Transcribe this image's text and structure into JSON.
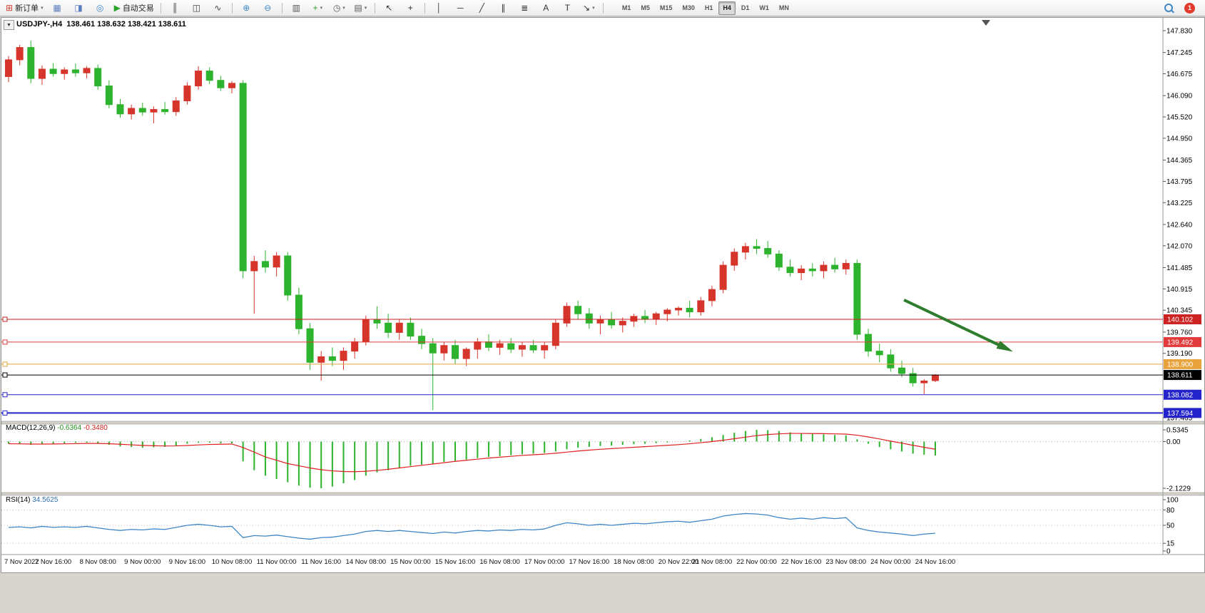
{
  "toolbar": {
    "items": [
      {
        "name": "new-order-button",
        "glyph": "⊞",
        "glyph_color": "#cf3b2f",
        "label": "新订单",
        "dropdown": true
      },
      {
        "name": "charts-tile-button",
        "glyph": "▦",
        "glyph_color": "#5a7fc0"
      },
      {
        "name": "profile-button",
        "glyph": "◨",
        "glyph_color": "#5a7fc0"
      },
      {
        "name": "data-window-button",
        "glyph": "◎",
        "glyph_color": "#3f87c4"
      },
      {
        "name": "auto-trading-button",
        "glyph": "▶",
        "glyph_color": "#2da52d",
        "label": "自动交易"
      },
      {
        "sep": true
      },
      {
        "name": "bar-chart-type-button",
        "glyph": "║",
        "glyph_color": "#444444"
      },
      {
        "name": "candlestick-chart-type-button",
        "glyph": "◫",
        "glyph_color": "#444444"
      },
      {
        "name": "line-chart-type-button",
        "glyph": "∿",
        "glyph_color": "#444444"
      },
      {
        "sep": true
      },
      {
        "name": "zoom-in-button",
        "glyph": "⊕",
        "glyph_color": "#3f87c4"
      },
      {
        "name": "zoom-out-button",
        "glyph": "⊖",
        "glyph_color": "#3f87c4"
      },
      {
        "sep": true
      },
      {
        "name": "tile-windows-button",
        "glyph": "▥",
        "glyph_color": "#555555"
      },
      {
        "name": "indicators-button",
        "glyph": "+",
        "glyph_color": "#2da52d",
        "dropdown": true
      },
      {
        "name": "periods-button",
        "glyph": "◷",
        "glyph_color": "#555555",
        "dropdown": true
      },
      {
        "name": "templates-button",
        "glyph": "▤",
        "glyph_color": "#555555",
        "dropdown": true
      },
      {
        "sep": true
      },
      {
        "name": "cursor-button",
        "glyph": "↖",
        "glyph_color": "#333333"
      },
      {
        "name": "crosshair-button",
        "glyph": "+",
        "glyph_color": "#333333"
      },
      {
        "sep": true
      },
      {
        "name": "vertical-line-button",
        "glyph": "│",
        "glyph_color": "#333333"
      },
      {
        "name": "horizontal-line-button",
        "glyph": "─",
        "glyph_color": "#333333"
      },
      {
        "name": "trendline-button",
        "glyph": "╱",
        "glyph_color": "#333333"
      },
      {
        "name": "channel-button",
        "glyph": "∥",
        "glyph_color": "#333333"
      },
      {
        "name": "fibonacci-button",
        "glyph": "≣",
        "glyph_color": "#333333"
      },
      {
        "name": "text-button",
        "glyph": "A",
        "glyph_color": "#333333"
      },
      {
        "name": "label-button",
        "glyph": "T",
        "glyph_color": "#333333"
      },
      {
        "name": "arrows-button",
        "glyph": "↘",
        "glyph_color": "#333333",
        "dropdown": true
      },
      {
        "sep": true
      }
    ],
    "timeframes": [
      "M1",
      "M5",
      "M15",
      "M30",
      "H1",
      "H4",
      "D1",
      "W1",
      "MN"
    ],
    "active_timeframe": "H4",
    "notification_count": "1"
  },
  "chart": {
    "quote_line": "USDJPY-,H4  138.461 138.632 138.421 138.611",
    "dropdown_glyph": "▼"
  },
  "indicators": {
    "macd": {
      "name": "MACD(12,26,9)",
      "value_main": "-0.6364",
      "value_signal": "-0.3480"
    },
    "rsi": {
      "name": "RSI(14)",
      "value": "34.5625"
    }
  },
  "colors": {
    "up_candle": "#d6352b",
    "down_candle": "#2db32d",
    "macd_histogram": "#2db32d",
    "macd_signal": "#e02020",
    "rsi_line": "#3e86c6",
    "resistance_red": "#cc2222",
    "pivot_orange": "#e8a33d",
    "support_blue": "#2424cc",
    "arrow_green": "#2e7d2e"
  },
  "chart_data": [
    {
      "type": "candlestick",
      "title": "USDJPY-,H4",
      "symbol": "USDJPY-",
      "timeframe": "H4",
      "up_color": "#d6352b",
      "down_color": "#2db32d",
      "ylim": [
        137.44,
        148.17
      ],
      "price_axis_labels": [
        147.83,
        147.245,
        146.675,
        146.09,
        145.52,
        144.95,
        144.365,
        143.795,
        143.225,
        142.64,
        142.07,
        141.485,
        140.915,
        140.345,
        139.76,
        139.19,
        137.465
      ],
      "x_labels": [
        [
          0,
          "7 Nov 2022"
        ],
        [
          4,
          "7 Nov 16:00"
        ],
        [
          8,
          "8 Nov 08:00"
        ],
        [
          12,
          "9 Nov 00:00"
        ],
        [
          16,
          "9 Nov 16:00"
        ],
        [
          20,
          "10 Nov 08:00"
        ],
        [
          24,
          "11 Nov 00:00"
        ],
        [
          28,
          "11 Nov 16:00"
        ],
        [
          32,
          "14 Nov 08:00"
        ],
        [
          36,
          "15 Nov 00:00"
        ],
        [
          40,
          "15 Nov 16:00"
        ],
        [
          44,
          "16 Nov 08:00"
        ],
        [
          48,
          "17 Nov 00:00"
        ],
        [
          52,
          "17 Nov 16:00"
        ],
        [
          56,
          "18 Nov 08:00"
        ],
        [
          60,
          "20 Nov 22:00"
        ],
        [
          63,
          "21 Nov 08:00"
        ],
        [
          67,
          "22 Nov 00:00"
        ],
        [
          71,
          "22 Nov 16:00"
        ],
        [
          75,
          "23 Nov 08:00"
        ],
        [
          79,
          "24 Nov 00:00"
        ],
        [
          83,
          "24 Nov 16:00"
        ]
      ],
      "ohlc": [
        [
          146.6,
          147.15,
          146.45,
          147.05
        ],
        [
          147.05,
          147.45,
          146.9,
          147.38
        ],
        [
          147.38,
          147.56,
          146.42,
          146.55
        ],
        [
          146.55,
          146.9,
          146.38,
          146.8
        ],
        [
          146.8,
          146.96,
          146.6,
          146.68
        ],
        [
          146.68,
          146.85,
          146.52,
          146.78
        ],
        [
          146.78,
          146.95,
          146.6,
          146.7
        ],
        [
          146.7,
          146.88,
          146.55,
          146.82
        ],
        [
          146.82,
          146.92,
          146.25,
          146.35
        ],
        [
          146.35,
          146.5,
          145.75,
          145.85
        ],
        [
          145.85,
          146.0,
          145.5,
          145.6
        ],
        [
          145.6,
          145.85,
          145.45,
          145.75
        ],
        [
          145.75,
          145.9,
          145.55,
          145.65
        ],
        [
          145.65,
          145.8,
          145.35,
          145.72
        ],
        [
          145.72,
          145.92,
          145.58,
          145.66
        ],
        [
          145.66,
          146.05,
          145.55,
          145.95
        ],
        [
          145.95,
          146.45,
          145.85,
          146.35
        ],
        [
          146.35,
          146.88,
          146.25,
          146.75
        ],
        [
          146.75,
          146.85,
          146.4,
          146.5
        ],
        [
          146.5,
          146.62,
          146.22,
          146.3
        ],
        [
          146.3,
          146.48,
          146.15,
          146.42
        ],
        [
          146.42,
          146.5,
          141.2,
          141.4
        ],
        [
          141.4,
          141.8,
          140.25,
          141.65
        ],
        [
          141.65,
          141.95,
          141.35,
          141.5
        ],
        [
          141.5,
          141.9,
          141.25,
          141.8
        ],
        [
          141.8,
          141.9,
          140.6,
          140.75
        ],
        [
          140.75,
          140.95,
          139.7,
          139.85
        ],
        [
          139.85,
          140.0,
          138.75,
          138.95
        ],
        [
          138.95,
          139.25,
          138.46,
          139.1
        ],
        [
          139.1,
          139.35,
          138.85,
          139.0
        ],
        [
          139.0,
          139.35,
          138.75,
          139.25
        ],
        [
          139.25,
          139.6,
          139.05,
          139.5
        ],
        [
          139.5,
          140.2,
          139.4,
          140.1
        ],
        [
          140.1,
          140.45,
          139.85,
          140.0
        ],
        [
          140.0,
          140.25,
          139.6,
          139.75
        ],
        [
          139.75,
          140.1,
          139.55,
          140.0
        ],
        [
          140.0,
          140.15,
          139.55,
          139.65
        ],
        [
          139.65,
          139.85,
          139.3,
          139.45
        ],
        [
          139.45,
          139.6,
          137.67,
          139.2
        ],
        [
          139.2,
          139.5,
          139.0,
          139.4
        ],
        [
          139.4,
          139.55,
          138.9,
          139.05
        ],
        [
          139.05,
          139.35,
          138.85,
          139.3
        ],
        [
          139.3,
          139.6,
          139.05,
          139.5
        ],
        [
          139.5,
          139.7,
          139.25,
          139.35
        ],
        [
          139.35,
          139.55,
          139.15,
          139.45
        ],
        [
          139.45,
          139.6,
          139.2,
          139.3
        ],
        [
          139.3,
          139.5,
          139.1,
          139.4
        ],
        [
          139.4,
          139.55,
          139.2,
          139.28
        ],
        [
          139.28,
          139.5,
          139.05,
          139.4
        ],
        [
          139.4,
          140.1,
          139.3,
          140.0
        ],
        [
          140.0,
          140.55,
          139.9,
          140.45
        ],
        [
          140.45,
          140.6,
          140.1,
          140.25
        ],
        [
          140.25,
          140.4,
          139.85,
          140.0
        ],
        [
          140.0,
          140.2,
          139.7,
          140.1
        ],
        [
          140.1,
          140.3,
          139.85,
          139.95
        ],
        [
          139.95,
          140.15,
          139.75,
          140.05
        ],
        [
          140.05,
          140.25,
          139.9,
          140.18
        ],
        [
          140.18,
          140.35,
          140.0,
          140.1
        ],
        [
          140.1,
          140.3,
          139.95,
          140.25
        ],
        [
          140.25,
          140.4,
          140.05,
          140.35
        ],
        [
          140.35,
          140.45,
          140.2,
          140.4
        ],
        [
          140.4,
          140.6,
          140.15,
          140.3
        ],
        [
          140.3,
          140.7,
          140.2,
          140.6
        ],
        [
          140.6,
          141.0,
          140.45,
          140.9
        ],
        [
          140.9,
          141.65,
          140.8,
          141.55
        ],
        [
          141.55,
          142.0,
          141.4,
          141.9
        ],
        [
          141.9,
          142.15,
          141.7,
          142.05
        ],
        [
          142.05,
          142.25,
          141.85,
          142.0
        ],
        [
          142.0,
          142.2,
          141.75,
          141.85
        ],
        [
          141.85,
          141.95,
          141.4,
          141.5
        ],
        [
          141.5,
          141.7,
          141.25,
          141.35
        ],
        [
          141.35,
          141.55,
          141.15,
          141.45
        ],
        [
          141.45,
          141.6,
          141.25,
          141.4
        ],
        [
          141.4,
          141.65,
          141.2,
          141.55
        ],
        [
          141.55,
          141.75,
          141.35,
          141.45
        ],
        [
          141.45,
          141.7,
          141.3,
          141.6
        ],
        [
          141.6,
          141.7,
          139.55,
          139.7
        ],
        [
          139.7,
          139.85,
          139.1,
          139.25
        ],
        [
          139.25,
          139.45,
          138.95,
          139.15
        ],
        [
          139.15,
          139.3,
          138.7,
          138.8
        ],
        [
          138.8,
          139.0,
          138.55,
          138.65
        ],
        [
          138.65,
          138.8,
          138.3,
          138.4
        ],
        [
          138.4,
          138.5,
          138.1,
          138.45
        ],
        [
          138.461,
          138.632,
          138.421,
          138.611
        ]
      ],
      "hlines": [
        {
          "name": "resistance-1",
          "price": 140.102,
          "label": "140.102",
          "color": "#cc2222",
          "width": 1
        },
        {
          "name": "resistance-2",
          "price": 139.492,
          "label": "139.492",
          "color": "#e23b3b",
          "width": 1
        },
        {
          "name": "pivot-orange",
          "price": 138.9,
          "label": "138.900",
          "color": "#e8a33d",
          "width": 1
        },
        {
          "name": "current-price",
          "price": 138.611,
          "label": "138.611",
          "color": "#000000",
          "width": 1
        },
        {
          "name": "support-1",
          "price": 138.082,
          "label": "138.082",
          "color": "#2424cc",
          "width": 1
        },
        {
          "name": "support-2",
          "price": 137.594,
          "label": "137.594",
          "color": "#2424cc",
          "width": 2
        }
      ],
      "annotations": [
        {
          "type": "arrow",
          "color": "#2e7d2e",
          "from_bar": 80.2,
          "from_price": 140.62,
          "to_bar": 89.5,
          "to_price": 139.3
        }
      ]
    },
    {
      "type": "bar",
      "name": "MACD(12,26,9)",
      "params": "12,26,9",
      "histogram_color": "#2db32d",
      "signal_color": "#e02020",
      "axis_labels": [
        [
          "0.5345",
          0.5345
        ],
        [
          "0.00",
          0
        ],
        [
          "-2.1229",
          -2.1229
        ]
      ],
      "last_histogram": -0.6364,
      "last_signal": -0.348,
      "histogram": [
        -0.1,
        -0.12,
        -0.15,
        -0.12,
        -0.1,
        -0.08,
        -0.06,
        -0.05,
        -0.08,
        -0.15,
        -0.22,
        -0.25,
        -0.28,
        -0.26,
        -0.24,
        -0.18,
        -0.1,
        -0.05,
        -0.05,
        -0.08,
        -0.08,
        -0.9,
        -1.3,
        -1.55,
        -1.7,
        -1.85,
        -2.0,
        -2.1,
        -2.1229,
        -2.05,
        -1.9,
        -1.75,
        -1.55,
        -1.4,
        -1.3,
        -1.2,
        -1.1,
        -1.05,
        -1.0,
        -0.92,
        -0.88,
        -0.82,
        -0.75,
        -0.7,
        -0.66,
        -0.62,
        -0.58,
        -0.55,
        -0.52,
        -0.45,
        -0.35,
        -0.28,
        -0.24,
        -0.2,
        -0.18,
        -0.15,
        -0.12,
        -0.1,
        -0.07,
        -0.04,
        0.0,
        0.05,
        0.12,
        0.2,
        0.3,
        0.4,
        0.48,
        0.5345,
        0.52,
        0.48,
        0.42,
        0.38,
        0.35,
        0.33,
        0.3,
        0.28,
        0.1,
        -0.1,
        -0.25,
        -0.35,
        -0.45,
        -0.55,
        -0.6,
        -0.6364
      ],
      "signal": [
        -0.1,
        -0.104,
        -0.113,
        -0.113,
        -0.11,
        -0.104,
        -0.095,
        -0.086,
        -0.085,
        -0.098,
        -0.122,
        -0.148,
        -0.174,
        -0.191,
        -0.201,
        -0.197,
        -0.178,
        -0.152,
        -0.132,
        -0.121,
        -0.113,
        -0.27,
        -0.48,
        -0.7,
        -0.85,
        -1.0,
        -1.1,
        -1.2,
        -1.28,
        -1.33,
        -1.36,
        -1.37,
        -1.35,
        -1.31,
        -1.26,
        -1.2,
        -1.14,
        -1.08,
        -1.02,
        -0.96,
        -0.9,
        -0.85,
        -0.8,
        -0.75,
        -0.71,
        -0.67,
        -0.63,
        -0.6,
        -0.57,
        -0.53,
        -0.48,
        -0.43,
        -0.39,
        -0.35,
        -0.32,
        -0.29,
        -0.26,
        -0.23,
        -0.2,
        -0.17,
        -0.14,
        -0.1,
        -0.05,
        0.0,
        0.06,
        0.13,
        0.2,
        0.27,
        0.32,
        0.35,
        0.37,
        0.37,
        0.365,
        0.36,
        0.35,
        0.34,
        0.29,
        0.21,
        0.12,
        0.02,
        -0.07,
        -0.17,
        -0.26,
        -0.348
      ]
    },
    {
      "type": "line",
      "name": "RSI(14)",
      "period": 14,
      "line_color": "#3e86c6",
      "last_value": 34.5625,
      "levels": [
        80,
        50,
        15
      ],
      "axis_labels": [
        [
          "100",
          100
        ],
        [
          "80",
          80
        ],
        [
          "50",
          50
        ],
        [
          "15",
          15
        ],
        [
          "0",
          0
        ]
      ],
      "values": [
        46,
        47,
        45,
        48,
        46,
        47,
        46,
        48,
        45,
        42,
        40,
        42,
        41,
        43,
        42,
        46,
        50,
        52,
        50,
        47,
        48,
        26,
        30,
        29,
        31,
        28,
        25,
        23,
        26,
        27,
        30,
        33,
        38,
        40,
        38,
        40,
        38,
        36,
        34,
        37,
        35,
        38,
        40,
        39,
        41,
        40,
        42,
        41,
        43,
        50,
        55,
        53,
        50,
        52,
        50,
        52,
        54,
        53,
        55,
        57,
        58,
        56,
        59,
        62,
        68,
        71,
        73,
        72,
        70,
        65,
        62,
        64,
        62,
        65,
        63,
        65,
        45,
        40,
        37,
        35,
        33,
        30,
        33,
        34.56
      ]
    }
  ]
}
